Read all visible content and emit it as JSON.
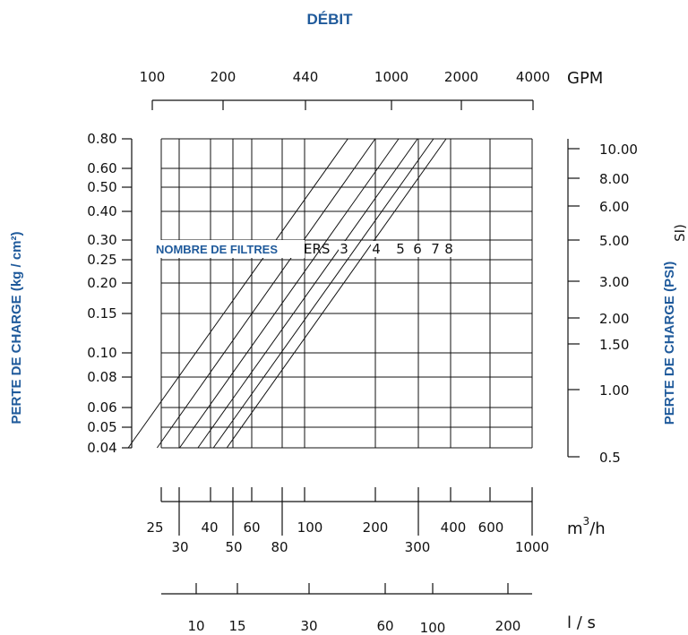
{
  "colors": {
    "title": "#1f5a9b",
    "ink": "#111111",
    "background": "#ffffff"
  },
  "chart_data": {
    "type": "line",
    "title": "DÉBIT",
    "ylabel_left": "PERTE DE CHARGE (kg / cm²)",
    "ylabel_right": "PERTE DE CHARGE (PSI)",
    "ylabel_right_fragment": "SI)",
    "scale": "log-log",
    "grid": true,
    "legend_title": "NOMBRE DE FILTRES",
    "legend_fragment": "ERS",
    "top_axis": {
      "unit": "GPM",
      "ticks": [
        "100",
        "200",
        "440",
        "1000",
        "2000",
        "4000"
      ]
    },
    "left_axis": {
      "unit": "kg/cm²",
      "ylim": [
        0.04,
        0.8
      ],
      "ticks": [
        "0.80",
        "0.60",
        "0.50",
        "0.40",
        "0.30",
        "0.25",
        "0.20",
        "0.15",
        "0.10",
        "0.08",
        "0.06",
        "0.05",
        "0.04"
      ]
    },
    "right_axis": {
      "unit": "PSI",
      "ticks": [
        "10.00",
        "8.00",
        "6.00",
        "5.00",
        "3.00",
        "2.00",
        "1.50",
        "1.00",
        "0.5"
      ]
    },
    "m3h_axis": {
      "unit": "m³/h",
      "unit_base": "m",
      "unit_sup": "3",
      "unit_suffix": "/h",
      "ticks": [
        "25",
        "30",
        "40",
        "50",
        "60",
        "80",
        "100",
        "200",
        "300",
        "400",
        "600",
        "1000"
      ]
    },
    "ls_axis": {
      "unit": "l / s",
      "ticks": [
        "10",
        "15",
        "30",
        "60",
        "100",
        "200"
      ]
    },
    "series": [
      {
        "name": "3",
        "x": [
          18,
          160
        ],
        "y": [
          0.04,
          0.8
        ]
      },
      {
        "name": "4",
        "x": [
          24,
          210
        ],
        "y": [
          0.04,
          0.8
        ]
      },
      {
        "name": "5",
        "x": [
          30,
          265
        ],
        "y": [
          0.04,
          0.8
        ]
      },
      {
        "name": "6",
        "x": [
          36,
          320
        ],
        "y": [
          0.04,
          0.8
        ]
      },
      {
        "name": "7",
        "x": [
          42,
          375
        ],
        "y": [
          0.04,
          0.8
        ]
      },
      {
        "name": "8",
        "x": [
          48,
          425
        ],
        "y": [
          0.04,
          0.8
        ]
      }
    ]
  }
}
